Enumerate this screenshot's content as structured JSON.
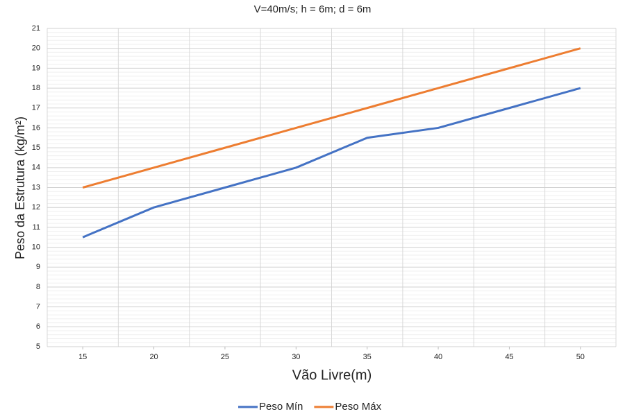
{
  "chart_data": {
    "type": "line",
    "title": "V=40m/s; h = 6m; d = 6m",
    "x_label": "Vão Livre(m)",
    "y_label": "Peso da Estrutura (kg/m²)",
    "x": [
      15,
      20,
      25,
      30,
      35,
      40,
      45,
      50
    ],
    "series": [
      {
        "name": "Peso Mín",
        "color": "#4472c4",
        "values": [
          10.5,
          12,
          13,
          14,
          15.5,
          16,
          17,
          18
        ]
      },
      {
        "name": "Peso Máx",
        "color": "#ed7d31",
        "values": [
          13,
          14,
          15,
          16,
          17,
          18,
          19,
          20
        ]
      }
    ],
    "xlim": [
      12.5,
      52.5
    ],
    "xticks": [
      15,
      20,
      25,
      30,
      35,
      40,
      45,
      50
    ],
    "ylim": [
      5,
      21
    ],
    "yticks": [
      5,
      6,
      7,
      8,
      9,
      10,
      11,
      12,
      13,
      14,
      15,
      16,
      17,
      18,
      19,
      20,
      21
    ],
    "grid": true,
    "legend": "bottom"
  }
}
